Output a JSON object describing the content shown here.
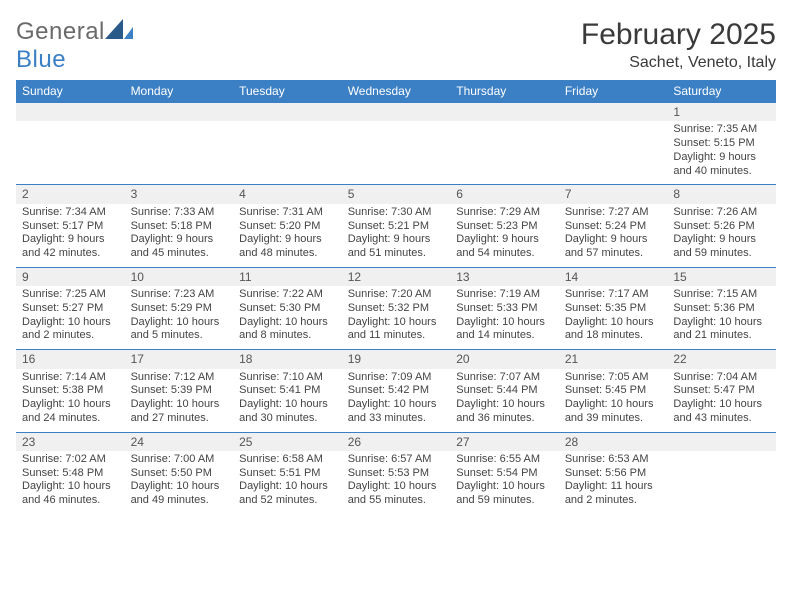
{
  "logo": {
    "word_general": "General",
    "word_blue": "Blue"
  },
  "header": {
    "month_title": "February 2025",
    "location": "Sachet, Veneto, Italy"
  },
  "day_headers": [
    "Sunday",
    "Monday",
    "Tuesday",
    "Wednesday",
    "Thursday",
    "Friday",
    "Saturday"
  ],
  "weeks": [
    [
      {
        "n": "",
        "l": [
          "",
          "",
          "",
          ""
        ]
      },
      {
        "n": "",
        "l": [
          "",
          "",
          "",
          ""
        ]
      },
      {
        "n": "",
        "l": [
          "",
          "",
          "",
          ""
        ]
      },
      {
        "n": "",
        "l": [
          "",
          "",
          "",
          ""
        ]
      },
      {
        "n": "",
        "l": [
          "",
          "",
          "",
          ""
        ]
      },
      {
        "n": "",
        "l": [
          "",
          "",
          "",
          ""
        ]
      },
      {
        "n": "1",
        "l": [
          "Sunrise: 7:35 AM",
          "Sunset: 5:15 PM",
          "Daylight: 9 hours",
          "and 40 minutes."
        ]
      }
    ],
    [
      {
        "n": "2",
        "l": [
          "Sunrise: 7:34 AM",
          "Sunset: 5:17 PM",
          "Daylight: 9 hours",
          "and 42 minutes."
        ]
      },
      {
        "n": "3",
        "l": [
          "Sunrise: 7:33 AM",
          "Sunset: 5:18 PM",
          "Daylight: 9 hours",
          "and 45 minutes."
        ]
      },
      {
        "n": "4",
        "l": [
          "Sunrise: 7:31 AM",
          "Sunset: 5:20 PM",
          "Daylight: 9 hours",
          "and 48 minutes."
        ]
      },
      {
        "n": "5",
        "l": [
          "Sunrise: 7:30 AM",
          "Sunset: 5:21 PM",
          "Daylight: 9 hours",
          "and 51 minutes."
        ]
      },
      {
        "n": "6",
        "l": [
          "Sunrise: 7:29 AM",
          "Sunset: 5:23 PM",
          "Daylight: 9 hours",
          "and 54 minutes."
        ]
      },
      {
        "n": "7",
        "l": [
          "Sunrise: 7:27 AM",
          "Sunset: 5:24 PM",
          "Daylight: 9 hours",
          "and 57 minutes."
        ]
      },
      {
        "n": "8",
        "l": [
          "Sunrise: 7:26 AM",
          "Sunset: 5:26 PM",
          "Daylight: 9 hours",
          "and 59 minutes."
        ]
      }
    ],
    [
      {
        "n": "9",
        "l": [
          "Sunrise: 7:25 AM",
          "Sunset: 5:27 PM",
          "Daylight: 10 hours",
          "and 2 minutes."
        ]
      },
      {
        "n": "10",
        "l": [
          "Sunrise: 7:23 AM",
          "Sunset: 5:29 PM",
          "Daylight: 10 hours",
          "and 5 minutes."
        ]
      },
      {
        "n": "11",
        "l": [
          "Sunrise: 7:22 AM",
          "Sunset: 5:30 PM",
          "Daylight: 10 hours",
          "and 8 minutes."
        ]
      },
      {
        "n": "12",
        "l": [
          "Sunrise: 7:20 AM",
          "Sunset: 5:32 PM",
          "Daylight: 10 hours",
          "and 11 minutes."
        ]
      },
      {
        "n": "13",
        "l": [
          "Sunrise: 7:19 AM",
          "Sunset: 5:33 PM",
          "Daylight: 10 hours",
          "and 14 minutes."
        ]
      },
      {
        "n": "14",
        "l": [
          "Sunrise: 7:17 AM",
          "Sunset: 5:35 PM",
          "Daylight: 10 hours",
          "and 18 minutes."
        ]
      },
      {
        "n": "15",
        "l": [
          "Sunrise: 7:15 AM",
          "Sunset: 5:36 PM",
          "Daylight: 10 hours",
          "and 21 minutes."
        ]
      }
    ],
    [
      {
        "n": "16",
        "l": [
          "Sunrise: 7:14 AM",
          "Sunset: 5:38 PM",
          "Daylight: 10 hours",
          "and 24 minutes."
        ]
      },
      {
        "n": "17",
        "l": [
          "Sunrise: 7:12 AM",
          "Sunset: 5:39 PM",
          "Daylight: 10 hours",
          "and 27 minutes."
        ]
      },
      {
        "n": "18",
        "l": [
          "Sunrise: 7:10 AM",
          "Sunset: 5:41 PM",
          "Daylight: 10 hours",
          "and 30 minutes."
        ]
      },
      {
        "n": "19",
        "l": [
          "Sunrise: 7:09 AM",
          "Sunset: 5:42 PM",
          "Daylight: 10 hours",
          "and 33 minutes."
        ]
      },
      {
        "n": "20",
        "l": [
          "Sunrise: 7:07 AM",
          "Sunset: 5:44 PM",
          "Daylight: 10 hours",
          "and 36 minutes."
        ]
      },
      {
        "n": "21",
        "l": [
          "Sunrise: 7:05 AM",
          "Sunset: 5:45 PM",
          "Daylight: 10 hours",
          "and 39 minutes."
        ]
      },
      {
        "n": "22",
        "l": [
          "Sunrise: 7:04 AM",
          "Sunset: 5:47 PM",
          "Daylight: 10 hours",
          "and 43 minutes."
        ]
      }
    ],
    [
      {
        "n": "23",
        "l": [
          "Sunrise: 7:02 AM",
          "Sunset: 5:48 PM",
          "Daylight: 10 hours",
          "and 46 minutes."
        ]
      },
      {
        "n": "24",
        "l": [
          "Sunrise: 7:00 AM",
          "Sunset: 5:50 PM",
          "Daylight: 10 hours",
          "and 49 minutes."
        ]
      },
      {
        "n": "25",
        "l": [
          "Sunrise: 6:58 AM",
          "Sunset: 5:51 PM",
          "Daylight: 10 hours",
          "and 52 minutes."
        ]
      },
      {
        "n": "26",
        "l": [
          "Sunrise: 6:57 AM",
          "Sunset: 5:53 PM",
          "Daylight: 10 hours",
          "and 55 minutes."
        ]
      },
      {
        "n": "27",
        "l": [
          "Sunrise: 6:55 AM",
          "Sunset: 5:54 PM",
          "Daylight: 10 hours",
          "and 59 minutes."
        ]
      },
      {
        "n": "28",
        "l": [
          "Sunrise: 6:53 AM",
          "Sunset: 5:56 PM",
          "Daylight: 11 hours",
          "and 2 minutes."
        ]
      },
      {
        "n": "",
        "l": [
          "",
          "",
          "",
          ""
        ]
      }
    ]
  ],
  "colors": {
    "header_blue": "#3b7fc4",
    "row_grey": "#f0f0f0"
  }
}
